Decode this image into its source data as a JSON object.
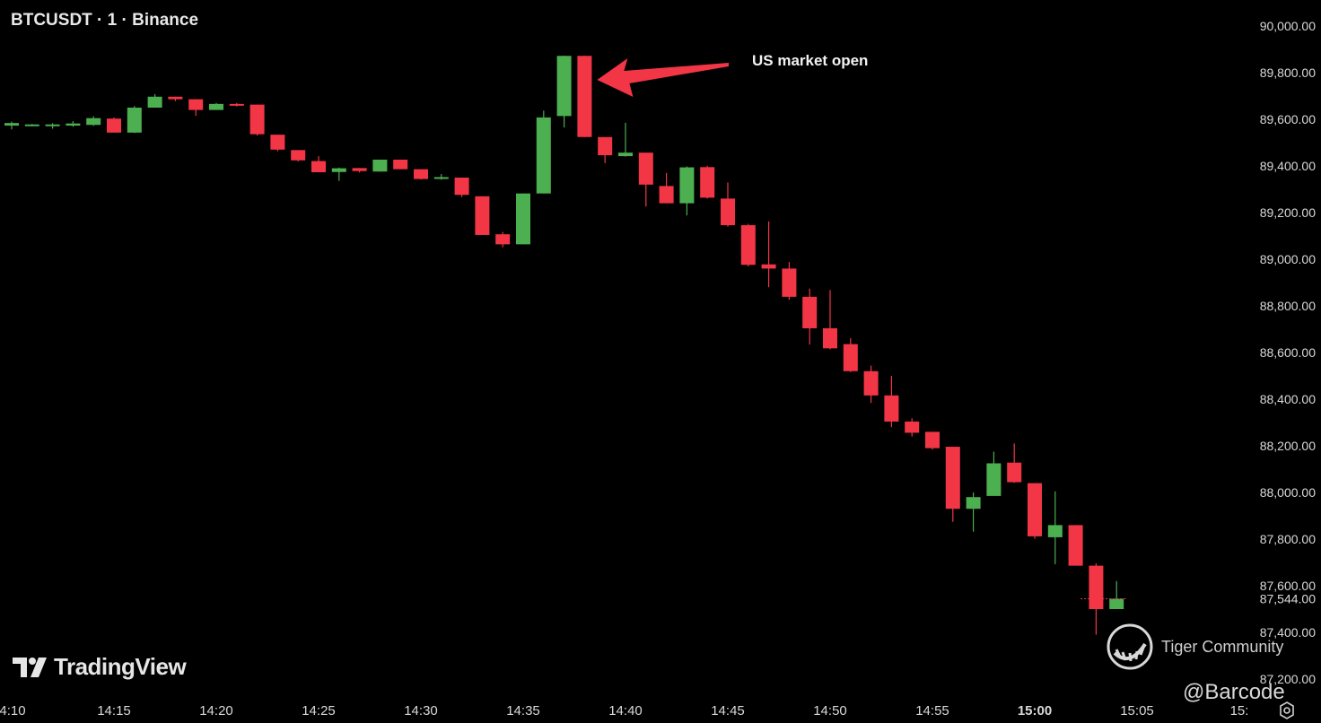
{
  "header": {
    "title": "BTCUSDT · 1 · Binance"
  },
  "branding": {
    "logo_text": "TradingView"
  },
  "watermarks": {
    "community": "Tiger Community",
    "handle": "@Barcode"
  },
  "colors": {
    "up": "#4caf50",
    "down": "#f23645",
    "background": "#000000",
    "axis_text": "#d9d9d9",
    "arrow": "#f23645"
  },
  "icons": {
    "logo": "tradingview-logo-icon",
    "tiger": "tiger-community-icon",
    "settings": "settings-icon"
  },
  "chart_data": {
    "type": "candlestick",
    "title": "BTCUSDT · 1 · Binance",
    "y_ticks": [
      "90,000.00",
      "89,800.00",
      "89,600.00",
      "89,400.00",
      "89,200.00",
      "89,000.00",
      "88,800.00",
      "88,600.00",
      "88,400.00",
      "88,200.00",
      "88,000.00",
      "87,800.00",
      "87,600.00",
      "87,400.00",
      "87,200.00"
    ],
    "y_tick_values": [
      90000,
      89800,
      89600,
      89400,
      89200,
      89000,
      88800,
      88600,
      88400,
      88200,
      88000,
      87800,
      87600,
      87400,
      87200
    ],
    "current_price_label": "87,544.00",
    "current_price": 87544,
    "ylim": [
      87150,
      90050
    ],
    "x_ticks": [
      "4:10",
      "14:15",
      "14:20",
      "14:25",
      "14:30",
      "14:35",
      "14:40",
      "14:45",
      "14:50",
      "14:55",
      "15:00",
      "15:05",
      "15:"
    ],
    "x_tick_minutes": [
      10,
      15,
      20,
      25,
      30,
      35,
      40,
      45,
      50,
      55,
      60,
      65,
      70
    ],
    "x_bold_tick": "15:00",
    "annotation": {
      "text": "US market open",
      "target_time": "14:38",
      "target_price": 89800
    },
    "candles": [
      {
        "t": "14:10",
        "o": 89573,
        "h": 89590,
        "l": 89557,
        "c": 89584
      },
      {
        "t": "14:11",
        "o": 89575,
        "h": 89580,
        "l": 89570,
        "c": 89578
      },
      {
        "t": "14:12",
        "o": 89572,
        "h": 89583,
        "l": 89560,
        "c": 89578
      },
      {
        "t": "14:13",
        "o": 89573,
        "h": 89592,
        "l": 89568,
        "c": 89582
      },
      {
        "t": "14:14",
        "o": 89576,
        "h": 89613,
        "l": 89572,
        "c": 89605
      },
      {
        "t": "14:15",
        "o": 89603,
        "h": 89608,
        "l": 89543,
        "c": 89543
      },
      {
        "t": "14:16",
        "o": 89543,
        "h": 89657,
        "l": 89541,
        "c": 89650
      },
      {
        "t": "14:17",
        "o": 89650,
        "h": 89708,
        "l": 89650,
        "c": 89697
      },
      {
        "t": "14:18",
        "o": 89697,
        "h": 89697,
        "l": 89678,
        "c": 89686
      },
      {
        "t": "14:19",
        "o": 89686,
        "h": 89686,
        "l": 89615,
        "c": 89640
      },
      {
        "t": "14:20",
        "o": 89640,
        "h": 89670,
        "l": 89640,
        "c": 89666
      },
      {
        "t": "14:21",
        "o": 89666,
        "h": 89670,
        "l": 89655,
        "c": 89664
      },
      {
        "t": "14:22",
        "o": 89663,
        "h": 89663,
        "l": 89530,
        "c": 89536
      },
      {
        "t": "14:23",
        "o": 89534,
        "h": 89534,
        "l": 89463,
        "c": 89470
      },
      {
        "t": "14:24",
        "o": 89468,
        "h": 89468,
        "l": 89419,
        "c": 89424
      },
      {
        "t": "14:25",
        "o": 89421,
        "h": 89442,
        "l": 89373,
        "c": 89373
      },
      {
        "t": "14:26",
        "o": 89374,
        "h": 89393,
        "l": 89336,
        "c": 89390
      },
      {
        "t": "14:27",
        "o": 89391,
        "h": 89391,
        "l": 89372,
        "c": 89378
      },
      {
        "t": "14:28",
        "o": 89376,
        "h": 89427,
        "l": 89376,
        "c": 89427
      },
      {
        "t": "14:29",
        "o": 89427,
        "h": 89427,
        "l": 89386,
        "c": 89386
      },
      {
        "t": "14:30",
        "o": 89386,
        "h": 89386,
        "l": 89342,
        "c": 89344
      },
      {
        "t": "14:31",
        "o": 89345,
        "h": 89365,
        "l": 89341,
        "c": 89352
      },
      {
        "t": "14:32",
        "o": 89350,
        "h": 89350,
        "l": 89267,
        "c": 89276
      },
      {
        "t": "14:33",
        "o": 89270,
        "h": 89270,
        "l": 89104,
        "c": 89104
      },
      {
        "t": "14:34",
        "o": 89107,
        "h": 89117,
        "l": 89051,
        "c": 89064
      },
      {
        "t": "14:35",
        "o": 89064,
        "h": 89282,
        "l": 89064,
        "c": 89282
      },
      {
        "t": "14:36",
        "o": 89282,
        "h": 89637,
        "l": 89282,
        "c": 89608
      },
      {
        "t": "14:37",
        "o": 89614,
        "h": 89873,
        "l": 89565,
        "c": 89872
      },
      {
        "t": "14:38",
        "o": 89872,
        "h": 89872,
        "l": 89524,
        "c": 89524
      },
      {
        "t": "14:39",
        "o": 89524,
        "h": 89524,
        "l": 89412,
        "c": 89446
      },
      {
        "t": "14:40",
        "o": 89442,
        "h": 89585,
        "l": 89440,
        "c": 89457
      },
      {
        "t": "14:41",
        "o": 89457,
        "h": 89457,
        "l": 89226,
        "c": 89320
      },
      {
        "t": "14:42",
        "o": 89314,
        "h": 89370,
        "l": 89240,
        "c": 89240
      },
      {
        "t": "14:43",
        "o": 89240,
        "h": 89398,
        "l": 89188,
        "c": 89394
      },
      {
        "t": "14:44",
        "o": 89395,
        "h": 89401,
        "l": 89260,
        "c": 89264
      },
      {
        "t": "14:45",
        "o": 89260,
        "h": 89329,
        "l": 89140,
        "c": 89146
      },
      {
        "t": "14:46",
        "o": 89146,
        "h": 89152,
        "l": 88969,
        "c": 88976
      },
      {
        "t": "14:47",
        "o": 88978,
        "h": 89162,
        "l": 88880,
        "c": 88960
      },
      {
        "t": "14:48",
        "o": 88960,
        "h": 88988,
        "l": 88826,
        "c": 88839
      },
      {
        "t": "14:49",
        "o": 88839,
        "h": 88874,
        "l": 88634,
        "c": 88704
      },
      {
        "t": "14:50",
        "o": 88704,
        "h": 88868,
        "l": 88614,
        "c": 88618
      },
      {
        "t": "14:51",
        "o": 88636,
        "h": 88662,
        "l": 88516,
        "c": 88520
      },
      {
        "t": "14:52",
        "o": 88520,
        "h": 88544,
        "l": 88384,
        "c": 88416
      },
      {
        "t": "14:53",
        "o": 88416,
        "h": 88500,
        "l": 88280,
        "c": 88304
      },
      {
        "t": "14:54",
        "o": 88304,
        "h": 88318,
        "l": 88240,
        "c": 88256
      },
      {
        "t": "14:55",
        "o": 88260,
        "h": 88260,
        "l": 88184,
        "c": 88190
      },
      {
        "t": "14:56",
        "o": 88196,
        "h": 88196,
        "l": 87874,
        "c": 87930
      },
      {
        "t": "14:57",
        "o": 87930,
        "h": 88000,
        "l": 87832,
        "c": 87980
      },
      {
        "t": "14:58",
        "o": 87985,
        "h": 88175,
        "l": 87985,
        "c": 88125
      },
      {
        "t": "14:59",
        "o": 88128,
        "h": 88210,
        "l": 88041,
        "c": 88044
      },
      {
        "t": "15:00",
        "o": 88040,
        "h": 88040,
        "l": 87802,
        "c": 87812
      },
      {
        "t": "15:01",
        "o": 87808,
        "h": 88005,
        "l": 87692,
        "c": 87860
      },
      {
        "t": "15:02",
        "o": 87860,
        "h": 87860,
        "l": 87686,
        "c": 87686
      },
      {
        "t": "15:03",
        "o": 87686,
        "h": 87696,
        "l": 87390,
        "c": 87500
      },
      {
        "t": "15:04",
        "o": 87500,
        "h": 87620,
        "l": 87500,
        "c": 87544
      }
    ]
  }
}
